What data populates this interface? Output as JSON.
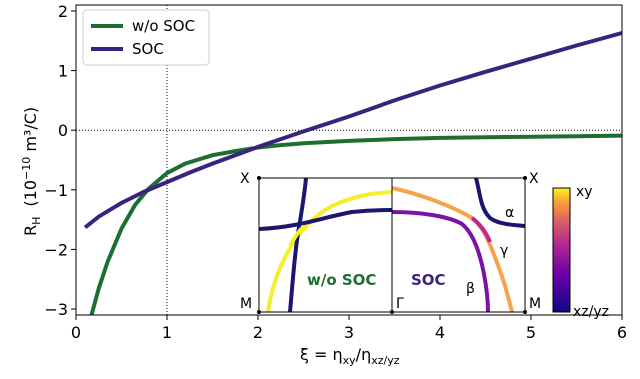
{
  "chart_data": {
    "type": "line",
    "xlabel": "ξ = η",
    "xlabel_sub1": "xy",
    "xlabel_mid": "/η",
    "xlabel_sub2": "xz/yz",
    "ylabel_main": "R",
    "ylabel_sub": "H",
    "ylabel_unit_pre": "(10",
    "ylabel_unit_exp": "−10",
    "ylabel_unit_post": " m³/C)",
    "xlim": [
      0,
      6
    ],
    "ylim": [
      -3.1,
      2.1
    ],
    "xticks": [
      0,
      1,
      2,
      3,
      4,
      5,
      6
    ],
    "yticks": [
      -3,
      -2,
      -1,
      0,
      1,
      2
    ],
    "xtick_labels": [
      "0",
      "1",
      "2",
      "3",
      "4",
      "5",
      "6"
    ],
    "ytick_labels": [
      "−3",
      "−2",
      "−1",
      "0",
      "1",
      "2"
    ],
    "reference_lines": {
      "vertical_x": 1,
      "horizontal_y": 0
    },
    "legend_position": "top-left",
    "series": [
      {
        "name": "w/o SOC",
        "color": "#1e6e32",
        "x": [
          0.17,
          0.25,
          0.35,
          0.5,
          0.65,
          0.8,
          1.0,
          1.2,
          1.5,
          1.75,
          2.0,
          2.25,
          2.5,
          3.0,
          3.5,
          4.0,
          4.5,
          5.0,
          5.5,
          6.0
        ],
        "y": [
          -3.1,
          -2.65,
          -2.2,
          -1.65,
          -1.25,
          -0.98,
          -0.72,
          -0.56,
          -0.42,
          -0.35,
          -0.29,
          -0.25,
          -0.22,
          -0.18,
          -0.15,
          -0.13,
          -0.12,
          -0.11,
          -0.1,
          -0.09
        ]
      },
      {
        "name": "SOC",
        "color": "#3a237e",
        "x": [
          0.1,
          0.25,
          0.5,
          0.75,
          1.0,
          1.25,
          1.5,
          1.75,
          2.0,
          2.25,
          2.5,
          3.0,
          3.5,
          4.0,
          4.5,
          5.0,
          5.5,
          6.0
        ],
        "y": [
          -1.63,
          -1.45,
          -1.22,
          -1.03,
          -0.87,
          -0.71,
          -0.56,
          -0.42,
          -0.28,
          -0.15,
          -0.02,
          0.23,
          0.5,
          0.75,
          0.98,
          1.2,
          1.42,
          1.63
        ]
      }
    ],
    "inset": {
      "corner_labels": {
        "top_left": "X",
        "top_right": "X",
        "bottom_left": "M",
        "bottom_mid": "Γ",
        "bottom_right": "M"
      },
      "panel_labels": {
        "left": "w/o SOC",
        "right": "SOC"
      },
      "band_labels": {
        "alpha": "α",
        "beta": "β",
        "gamma": "γ"
      },
      "colorbar_top": "xy",
      "colorbar_bottom": "xz/yz",
      "colors": {
        "yellow": "#f2f02a",
        "navy": "#1b1670",
        "orange": "#f5a44a",
        "purple": "#7b12a6",
        "magenta": "#c2268f"
      }
    }
  }
}
